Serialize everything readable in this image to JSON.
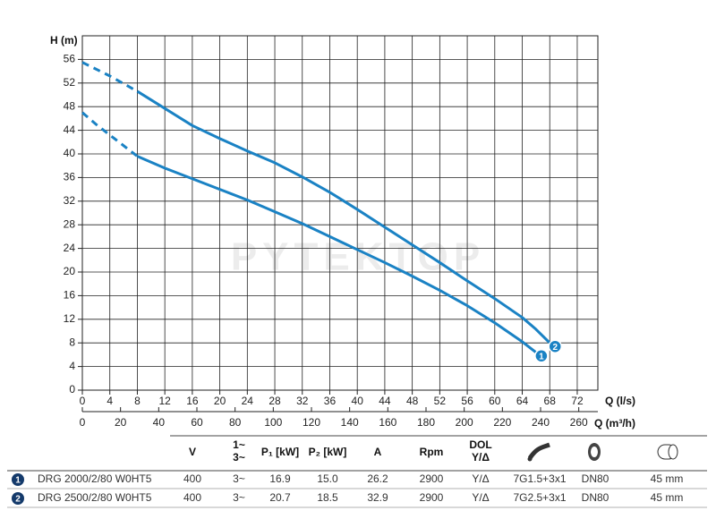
{
  "chart_data": {
    "type": "line",
    "y_label": "H (m)",
    "x_label": "Q (l/s)",
    "x2_label": "Q (m³/h)",
    "watermark": "PYTEKTOP",
    "xlim": [
      0,
      75
    ],
    "xticks": [
      0,
      4,
      8,
      12,
      16,
      20,
      24,
      28,
      32,
      36,
      40,
      44,
      48,
      52,
      56,
      60,
      64,
      68,
      72
    ],
    "x2lim": [
      0,
      270
    ],
    "x2ticks": [
      0,
      20,
      40,
      60,
      80,
      100,
      120,
      140,
      160,
      180,
      200,
      220,
      240,
      260
    ],
    "ylim": [
      0,
      60
    ],
    "yticks": [
      0,
      4,
      8,
      12,
      16,
      20,
      24,
      28,
      32,
      36,
      40,
      44,
      48,
      52,
      56
    ],
    "grid": true,
    "series": [
      {
        "name": "DRG 2000/2/80 W0HT5",
        "marker": "1",
        "color": "#1a82c4",
        "dashed_until_x": 8,
        "x": [
          0,
          2,
          4,
          8,
          12,
          16,
          20,
          24,
          28,
          32,
          36,
          40,
          44,
          48,
          52,
          56,
          60,
          64,
          66
        ],
        "values": [
          47,
          45,
          43.2,
          39.6,
          37.6,
          35.8,
          34,
          32.2,
          30.2,
          28.2,
          26,
          23.8,
          21.6,
          19.3,
          16.9,
          14.3,
          11.4,
          8.2,
          6.4
        ]
      },
      {
        "name": "DRG 2500/2/80 W0HT5",
        "marker": "2",
        "color": "#1a82c4",
        "dashed_until_x": 8,
        "x": [
          0,
          4,
          8,
          12,
          16,
          20,
          24,
          28,
          32,
          36,
          40,
          44,
          48,
          52,
          56,
          60,
          64,
          66,
          68
        ],
        "values": [
          55.5,
          53.2,
          50.6,
          47.7,
          44.8,
          42.6,
          40.5,
          38.5,
          36.1,
          33.5,
          30.6,
          27.6,
          24.6,
          21.6,
          18.5,
          15.5,
          12.3,
          10.3,
          8
        ]
      }
    ]
  },
  "table": {
    "headers": [
      "V",
      [
        "1~",
        "3~"
      ],
      "P₁ [kW]",
      "P₂ [kW]",
      "A",
      "Rpm",
      [
        "DOL",
        "Y/Δ"
      ]
    ],
    "rows": [
      [
        "400",
        "3~",
        "16.9",
        "15.0",
        "26.2",
        "2900",
        "Y/Δ",
        "7G1.5+3x1",
        "DN80",
        "45 mm"
      ],
      [
        "400",
        "3~",
        "20.7",
        "18.5",
        "32.9",
        "2900",
        "Y/Δ",
        "7G2.5+3x1",
        "DN80",
        "45 mm"
      ]
    ]
  }
}
